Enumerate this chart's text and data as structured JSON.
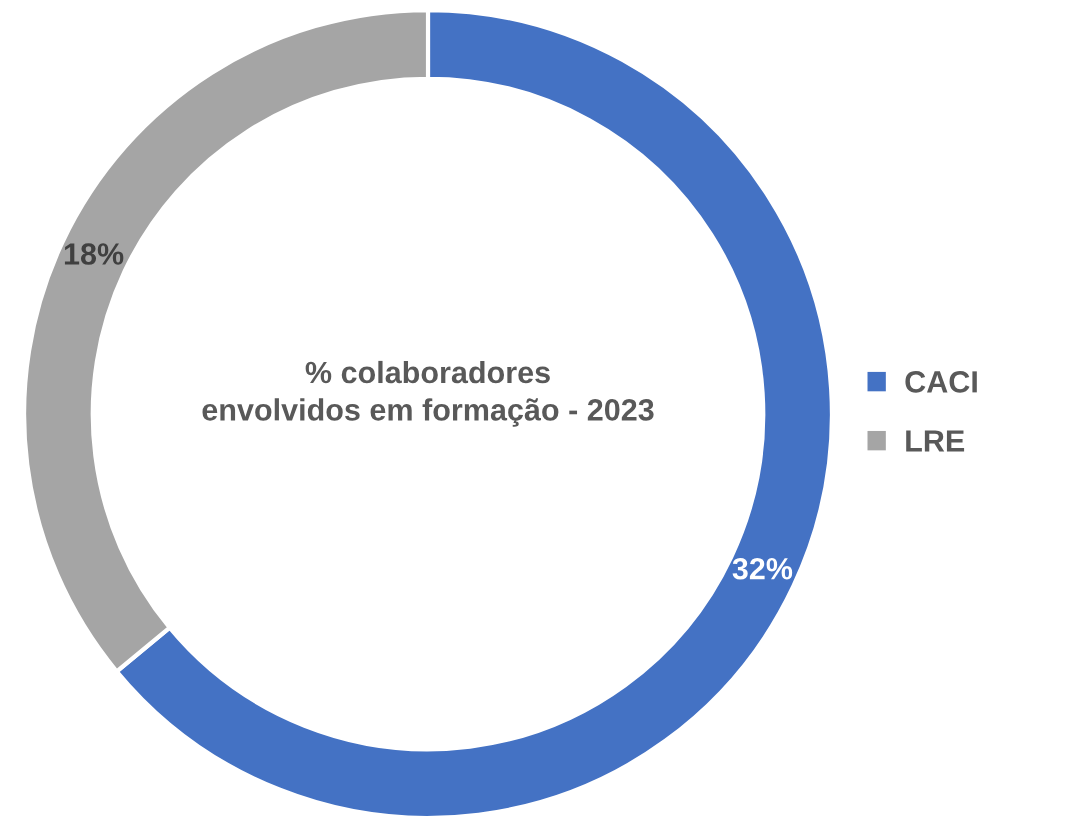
{
  "chart_data": {
    "type": "donut",
    "title": "% colaboradores\nenvolvidos em formação - 2023",
    "categories": [
      "CACI",
      "LRE"
    ],
    "values": [
      32,
      18
    ],
    "colors": [
      "#4472c4",
      "#a5a5a5"
    ],
    "value_labels": [
      "32%",
      "18%"
    ],
    "legend": "right"
  }
}
